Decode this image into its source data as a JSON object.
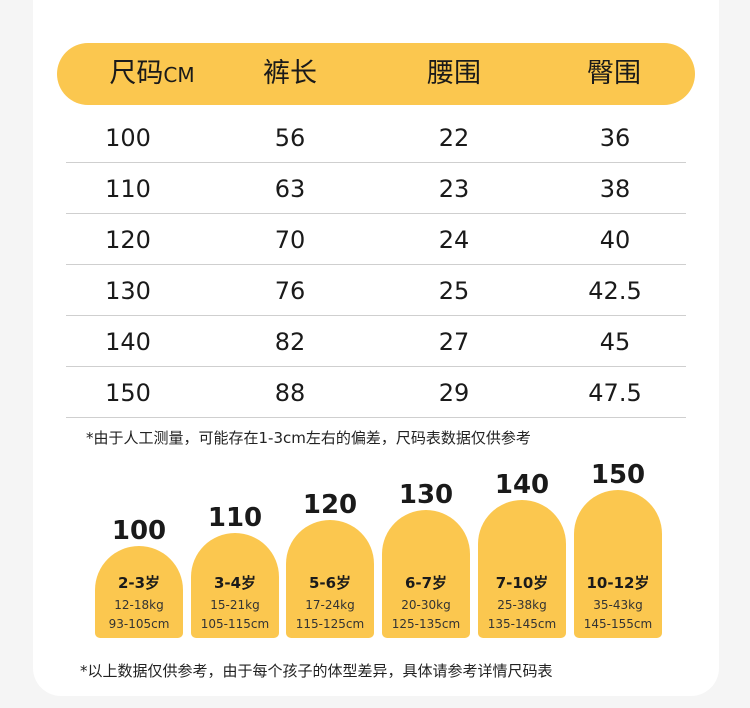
{
  "table": {
    "headers": [
      {
        "label": "尺码",
        "unit": "CM"
      },
      {
        "label": "裤长",
        "unit": ""
      },
      {
        "label": "腰围",
        "unit": ""
      },
      {
        "label": "臀围",
        "unit": ""
      }
    ],
    "rows": [
      [
        "100",
        "56",
        "22",
        "36"
      ],
      [
        "110",
        "63",
        "23",
        "38"
      ],
      [
        "120",
        "70",
        "24",
        "40"
      ],
      [
        "130",
        "76",
        "25",
        "42.5"
      ],
      [
        "140",
        "82",
        "27",
        "45"
      ],
      [
        "150",
        "88",
        "29",
        "47.5"
      ]
    ]
  },
  "note_top": "*由于人工测量，可能存在1-3cm左右的偏差，尺码表数据仅供参考",
  "sizes": [
    {
      "size": "100",
      "age": "2-3岁",
      "weight": "12-18kg",
      "height": "93-105cm"
    },
    {
      "size": "110",
      "age": "3-4岁",
      "weight": "15-21kg",
      "height": "105-115cm"
    },
    {
      "size": "120",
      "age": "5-6岁",
      "weight": "17-24kg",
      "height": "115-125cm"
    },
    {
      "size": "130",
      "age": "6-7岁",
      "weight": "20-30kg",
      "height": "125-135cm"
    },
    {
      "size": "140",
      "age": "7-10岁",
      "weight": "25-38kg",
      "height": "135-145cm"
    },
    {
      "size": "150",
      "age": "10-12岁",
      "weight": "35-43kg",
      "height": "145-155cm"
    }
  ],
  "note_bottom": "*以上数据仅供参考，由于每个孩子的体型差异，具体请参考详情尺码表",
  "colors": {
    "accent": "#fbc74f",
    "card": "#ffffff",
    "background": "#f5f5f5"
  }
}
